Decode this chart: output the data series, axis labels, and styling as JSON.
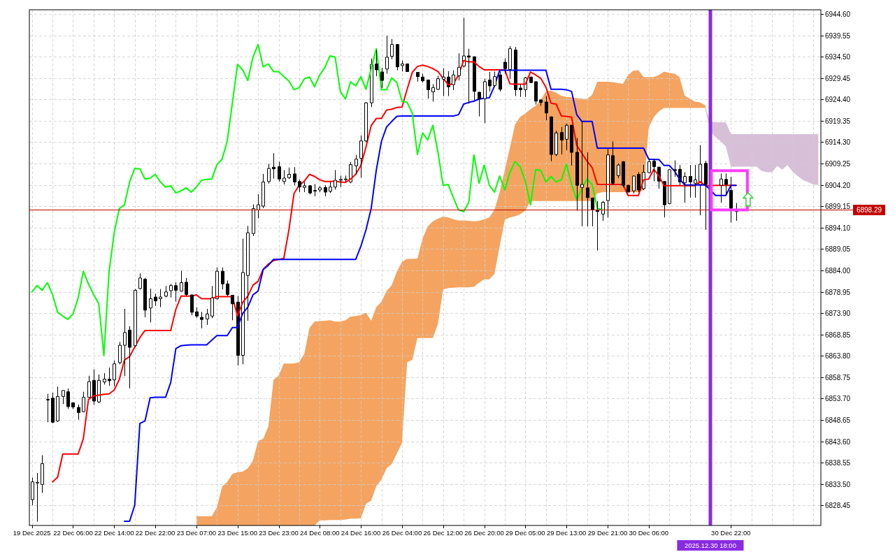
{
  "chart_data": {
    "type": "candlestick",
    "categories": [
      "19 Dec 2025",
      null,
      null,
      null,
      null,
      null,
      null,
      null,
      "22 Dec 06:00",
      null,
      null,
      null,
      null,
      null,
      null,
      null,
      "22 Dec 14:00",
      null,
      null,
      null,
      null,
      null,
      null,
      null,
      "22 Dec 22:00",
      null,
      null,
      null,
      null,
      null,
      null,
      null,
      "23 Dec 07:00",
      null,
      null,
      null,
      null,
      null,
      null,
      null,
      "23 Dec 15:00",
      null,
      null,
      null,
      null,
      null,
      null,
      null,
      "23 Dec 23:00",
      null,
      null,
      null,
      null,
      null,
      null,
      null,
      "24 Dec 08:00",
      null,
      null,
      null,
      null,
      null,
      null,
      null,
      "24 Dec 16:00",
      null,
      null,
      null,
      null,
      null,
      null,
      null,
      "26 Dec 04:00",
      null,
      null,
      null,
      null,
      null,
      null,
      null,
      "26 Dec 12:00",
      null,
      null,
      null,
      null,
      null,
      null,
      null,
      "26 Dec 20:00",
      null,
      null,
      null,
      null,
      null,
      null,
      null,
      "29 Dec 05:00",
      null,
      null,
      null,
      null,
      null,
      null,
      null,
      "29 Dec 13:00",
      null,
      null,
      null,
      null,
      null,
      null,
      null,
      "29 Dec 21:00",
      null,
      null,
      null,
      null,
      null,
      null,
      null,
      "30 Dec 06:00",
      null,
      null,
      null,
      null,
      null,
      null,
      null,
      null,
      null,
      null,
      null,
      "2025.12.30 18:00",
      null,
      null,
      null,
      "30 Dec 22:00",
      null,
      null,
      null,
      null,
      null,
      null,
      null,
      null,
      null,
      null,
      null,
      null,
      null,
      null,
      null,
      null,
      null
    ],
    "ohlc": [
      [
        6829.8,
        6835.0,
        6828.5,
        6834.0
      ],
      [
        6833.9,
        6836.1,
        6824.6,
        6833.9
      ],
      [
        6833.4,
        6840.3,
        6831.4,
        6838.3
      ],
      [
        6853.5,
        6854.8,
        6848.1,
        6853.5
      ],
      [
        6853.8,
        6855.1,
        6847.9,
        6848.1
      ],
      [
        6848.4,
        6856.5,
        6848.2,
        6854.2
      ],
      [
        6854.2,
        6855.7,
        6852.4,
        6855.6
      ],
      [
        6855.3,
        6856.1,
        6851.3,
        6851.8
      ],
      [
        6852.7,
        6852.8,
        6851.2,
        6851.7
      ],
      [
        6851.6,
        6852.3,
        6848.7,
        6850.4
      ],
      [
        6850.6,
        6855.3,
        6850.5,
        6854.0
      ],
      [
        6854.0,
        6859.1,
        6853.9,
        6857.7
      ],
      [
        6858.0,
        6860.6,
        6852.2,
        6853.1
      ],
      [
        6852.9,
        6859.4,
        6852.6,
        6858.0
      ],
      [
        6857.6,
        6859.7,
        6857.0,
        6858.3
      ],
      [
        6858.3,
        6861.0,
        6856.7,
        6857.9
      ],
      [
        6858.1,
        6862.7,
        6856.6,
        6861.9
      ],
      [
        6862.2,
        6867.1,
        6861.8,
        6866.3
      ],
      [
        6866.3,
        6874.9,
        6859.0,
        6869.3
      ],
      [
        6869.9,
        6870.8,
        6856.1,
        6865.8
      ],
      [
        6866.2,
        6879.6,
        6865.9,
        6879.3
      ],
      [
        6879.7,
        6883.3,
        6879.5,
        6882.2
      ],
      [
        6881.9,
        6882.2,
        6872.9,
        6874.6
      ],
      [
        6875.1,
        6879.7,
        6871.7,
        6877.3
      ],
      [
        6877.7,
        6878.5,
        6875.6,
        6876.8
      ],
      [
        6877.3,
        6879.6,
        6875.3,
        6877.7
      ],
      [
        6877.9,
        6880.3,
        6877.6,
        6878.9
      ],
      [
        6879.2,
        6880.8,
        6877.6,
        6880.4
      ],
      [
        6880.4,
        6881.2,
        6876.6,
        6879.3
      ],
      [
        6879.1,
        6883.9,
        6879.0,
        6881.1
      ],
      [
        6881.2,
        6882.2,
        6877.9,
        6878.3
      ],
      [
        6878.2,
        6878.3,
        6873.4,
        6874.1
      ],
      [
        6874.2,
        6875.3,
        6872.8,
        6873.2
      ],
      [
        6872.9,
        6874.2,
        6870.3,
        6872.4
      ],
      [
        6872.5,
        6874.9,
        6871.1,
        6873.7
      ],
      [
        6873.2,
        6880.3,
        6872.7,
        6877.5
      ],
      [
        6877.3,
        6884.7,
        6877.1,
        6883.8
      ],
      [
        6883.8,
        6884.7,
        6879.5,
        6880.8
      ],
      [
        6880.8,
        6881.6,
        6877.9,
        6878.3
      ],
      [
        6878.1,
        6878.2,
        6872.2,
        6876.1
      ],
      [
        6876.5,
        6877.9,
        6861.5,
        6863.9
      ],
      [
        6863.9,
        6891.5,
        6861.8,
        6883.5
      ],
      [
        6882.8,
        6894.5,
        6872.1,
        6892.9
      ],
      [
        6892.7,
        6899.6,
        6892.1,
        6898.6
      ],
      [
        6898.3,
        6902.0,
        6896.3,
        6899.5
      ],
      [
        6899.2,
        6906.8,
        6898.7,
        6904.9
      ],
      [
        6905.0,
        6909.2,
        6904.5,
        6908.1
      ],
      [
        6908.4,
        6911.7,
        6905.7,
        6908.0
      ],
      [
        6908.5,
        6909.7,
        6905.0,
        6905.6
      ],
      [
        6905.0,
        6907.7,
        6904.3,
        6905.8
      ],
      [
        6905.9,
        6908.3,
        6905.6,
        6906.7
      ],
      [
        6906.8,
        6908.4,
        6904.1,
        6904.9
      ],
      [
        6905.0,
        6905.5,
        6902.5,
        6903.7
      ],
      [
        6903.6,
        6904.9,
        6902.5,
        6904.0
      ],
      [
        6904.0,
        6904.1,
        6902.0,
        6902.3
      ],
      [
        6902.9,
        6904.4,
        6901.5,
        6902.8
      ],
      [
        6903.0,
        6903.9,
        6902.5,
        6903.5
      ],
      [
        6903.6,
        6904.1,
        6901.5,
        6902.5
      ],
      [
        6902.7,
        6904.9,
        6902.3,
        6903.7
      ],
      [
        6903.7,
        6907.7,
        6903.1,
        6905.3
      ],
      [
        6905.3,
        6906.4,
        6903.7,
        6905.5
      ],
      [
        6905.5,
        6906.4,
        6905.0,
        6905.6
      ],
      [
        6904.9,
        6909.6,
        6904.6,
        6909.0
      ],
      [
        6908.7,
        6911.3,
        6906.7,
        6910.3
      ],
      [
        6910.5,
        6915.9,
        6905.9,
        6914.6
      ],
      [
        6914.6,
        6923.8,
        6914.3,
        6923.6
      ],
      [
        6923.6,
        6934.1,
        6922.6,
        6932.7
      ],
      [
        6932.8,
        6936.1,
        6929.9,
        6931.4
      ],
      [
        6930.9,
        6931.9,
        6927.1,
        6928.9
      ],
      [
        6931.6,
        6939.5,
        6930.5,
        6934.4
      ],
      [
        6934.6,
        6938.7,
        6933.9,
        6937.4
      ],
      [
        6937.4,
        6937.5,
        6931.3,
        6932.1
      ],
      [
        6932.4,
        6933.6,
        6931.0,
        6932.8
      ],
      [
        6932.8,
        6932.9,
        6930.9,
        6931.0
      ],
      null,
      [
        6930.8,
        6930.9,
        6928.6,
        6929.8
      ],
      [
        6929.7,
        6930.5,
        6928.4,
        6928.8
      ],
      [
        6929.0,
        6929.1,
        6924.6,
        6926.7
      ],
      [
        6926.2,
        6928.0,
        6923.9,
        6927.2
      ],
      [
        6926.8,
        6930.0,
        6926.7,
        6929.3
      ],
      [
        6929.2,
        6931.8,
        6925.2,
        6929.7
      ],
      [
        6929.7,
        6931.1,
        6925.2,
        6927.4
      ],
      [
        6927.9,
        6931.3,
        6926.6,
        6930.2
      ],
      [
        6930.0,
        6935.3,
        6928.9,
        6932.0
      ],
      [
        6932.3,
        6943.7,
        6932.0,
        6934.7
      ],
      [
        6934.7,
        6936.4,
        6923.4,
        6934.4
      ],
      [
        6934.5,
        6934.6,
        6923.9,
        6926.3
      ],
      [
        6926.1,
        6926.2,
        6920.4,
        6924.5
      ],
      [
        6924.6,
        6929.3,
        6918.8,
        6928.6
      ],
      [
        6929.0,
        6930.9,
        6926.3,
        6927.6
      ],
      [
        6927.7,
        6931.0,
        6927.5,
        6929.8
      ],
      [
        6930.2,
        6931.0,
        6926.3,
        6926.8
      ],
      [
        6933.2,
        6934.1,
        6930.5,
        6931.7
      ],
      [
        6931.5,
        6937.0,
        6929.3,
        6936.4
      ],
      [
        6936.1,
        6936.8,
        6925.2,
        6926.7
      ],
      [
        6927.1,
        6928.0,
        6925.0,
        6926.7
      ],
      [
        6926.7,
        6929.7,
        6925.0,
        6929.5
      ],
      [
        6929.7,
        6929.8,
        6928.3,
        6928.4
      ],
      [
        6928.6,
        6928.7,
        6923.2,
        6924.0
      ],
      [
        6924.3,
        6924.4,
        6922.9,
        6923.7
      ],
      [
        6923.8,
        6925.2,
        6919.5,
        6921.2
      ],
      [
        6920.3,
        6920.4,
        6909.8,
        6911.4
      ],
      [
        6911.4,
        6917.0,
        6911.0,
        6916.5
      ],
      [
        6916.6,
        6917.9,
        6911.4,
        6914.8
      ],
      [
        6915.0,
        6918.7,
        6912.4,
        6918.3
      ],
      [
        6918.3,
        6918.4,
        6908.8,
        6911.9
      ],
      [
        6911.9,
        6915.3,
        6898.1,
        6904.1
      ],
      [
        6903.6,
        6919.2,
        6894.4,
        6904.3
      ],
      [
        6903.5,
        6911.9,
        6894.4,
        6901.2
      ],
      [
        6901.1,
        6901.2,
        6894.4,
        6898.3
      ],
      [
        6898.3,
        6900.4,
        6888.7,
        6897.9
      ],
      [
        6897.3,
        6900.4,
        6895.7,
        6900.1
      ],
      [
        6900.5,
        6912.7,
        6896.5,
        6911.3
      ],
      [
        6911.1,
        6914.5,
        6904.1,
        6904.6
      ],
      [
        6906.4,
        6909.3,
        6905.8,
        6908.9
      ],
      [
        6909.7,
        6909.8,
        6903.6,
        6904.1
      ],
      [
        6904.1,
        6904.2,
        6902.5,
        6902.5
      ],
      [
        6902.8,
        6906.4,
        6902.2,
        6906.3
      ],
      [
        6906.7,
        6907.2,
        6902.5,
        6903.0
      ],
      [
        6903.3,
        6909.0,
        6903.0,
        6907.2
      ],
      [
        6907.1,
        6910.4,
        6907.0,
        6909.7
      ],
      [
        6909.8,
        6910.4,
        6905.1,
        6908.5
      ],
      [
        6908.4,
        6908.5,
        6903.3,
        6905.1
      ],
      [
        6905.0,
        6905.1,
        6896.5,
        6899.5
      ],
      [
        6899.8,
        6907.9,
        6899.6,
        6907.8
      ],
      [
        6907.8,
        6910.0,
        6906.1,
        6907.6
      ],
      [
        6907.9,
        6908.9,
        6904.1,
        6904.9
      ],
      [
        6904.7,
        6907.2,
        6900.0,
        6906.2
      ],
      [
        6906.2,
        6908.9,
        6901.2,
        6904.9
      ],
      [
        6904.6,
        6908.9,
        6901.2,
        6905.4
      ],
      [
        6904.3,
        6913.6,
        6897.0,
        6909.1
      ],
      [
        6909.3,
        6909.9,
        6893.6,
        6904.3
      ],
      null,
      null,
      [
        6904.1,
        6906.9,
        6900.0,
        6905.6
      ],
      [
        6905.5,
        6906.9,
        6901.7,
        6904.3
      ],
      [
        6902.9,
        6906.1,
        6895.3,
        6898.7
      ],
      [
        6897.9,
        6899.9,
        6895.7,
        6898.29
      ],
      null,
      null,
      null,
      null,
      null,
      null,
      null,
      null,
      null,
      null,
      null,
      null,
      null,
      null,
      null,
      null
    ],
    "series": [
      {
        "type": "area",
        "color": "#f4a460",
        "values": [
          null,
          null,
          null,
          null,
          null,
          null,
          null,
          null,
          null,
          null,
          null,
          null,
          null,
          null,
          null,
          null,
          null,
          null,
          null,
          null,
          null,
          null,
          null,
          null,
          null,
          null,
          null,
          null,
          null,
          null,
          null,
          null,
          6825.9,
          6825.9,
          6825.9,
          6825.9,
          6828.0,
          6832.9,
          6834.0,
          6835.9,
          6836.3,
          6836.4,
          6837.2,
          6839.0,
          6843.7,
          6844.2,
          6847.1,
          6858.1,
          6859.1,
          6862.0,
          6862.0,
          6862.0,
          6862.3,
          6864.3,
          6870.4,
          6871.9,
          6872.0,
          6872.1,
          6872.2,
          6871.9,
          6871.9,
          6872.2,
          6873.1,
          6873.2,
          6873.4,
          6874.0,
          6872.1,
          6875.3,
          6876.6,
          6879.1,
          6880.5,
          6883.7,
          6886.0,
          6886.7,
          6886.7,
          6886.8,
          6891.5,
          6894.4,
          6895.6,
          6896.2,
          6896.7,
          6896.5,
          6896.1,
          6895.8,
          6895.8,
          6895.7,
          6895.6,
          6895.7,
          6896.1,
          6896.5,
          6898.3,
          6902.5,
          6907.7,
          6913.0,
          6918.5,
          6920.3,
          6921.1,
          6922.1,
          6922.9,
          6924.2,
          6926.3,
          6926.5,
          6926.0,
          6925.3,
          6925.0,
          6924.9,
          6924.7,
          6924.6,
          6924.5,
          6925.5,
          6928.6,
          6928.6,
          6928.6,
          6928.5,
          6928.3,
          6928.1,
          6930.2,
          6931.2,
          6931.3,
          6929.7,
          6929.7,
          6929.7,
          6930.2,
          6931.0,
          6930.7,
          6930.5,
          6929.7,
          6925.3,
          6924.6,
          6923.9,
          6923.7,
          6923.0,
          6916.8,
          6915.5,
          6914.5,
          6913.3,
          6908.5,
          6908.5,
          6908.5,
          6908.5,
          6908.5,
          6908.5,
          6907.5,
          6907.2,
          6907.2,
          6908.7,
          6907.8,
          6908.9,
          6907.3,
          6906.3,
          6905.4,
          6904.9,
          6904.3,
          6904.2
        ]
      },
      {
        "type": "area",
        "color": "#d8bfd8",
        "values": [
          null,
          null,
          null,
          null,
          null,
          null,
          null,
          null,
          null,
          null,
          null,
          null,
          null,
          null,
          null,
          null,
          null,
          null,
          null,
          null,
          null,
          null,
          null,
          null,
          null,
          null,
          null,
          null,
          null,
          null,
          null,
          null,
          null,
          null,
          null,
          null,
          null,
          null,
          null,
          null,
          null,
          null,
          null,
          null,
          null,
          null,
          null,
          null,
          null,
          null,
          null,
          null,
          null,
          null,
          null,
          null,
          6824.9,
          6824.9,
          6825.0,
          6825.0,
          6825.0,
          6825.1,
          6825.3,
          6825.3,
          6825.4,
          6828.8,
          6829.6,
          6833.0,
          6834.5,
          6837.2,
          6838.2,
          6840.7,
          6843.2,
          6862.3,
          6862.8,
          6868.0,
          6868.0,
          6868.0,
          6868.0,
          6871.4,
          6879.5,
          6879.8,
          6879.9,
          6880.0,
          6880.0,
          6880.0,
          6880.1,
          6881.1,
          6881.9,
          6881.9,
          6883.2,
          6889.7,
          6896.0,
          6896.5,
          6896.8,
          6897.3,
          6898.1,
          6900.4,
          6900.4,
          6900.4,
          6900.4,
          6900.4,
          6900.4,
          6900.4,
          6900.4,
          6900.4,
          6900.4,
          6900.4,
          6900.4,
          6900.4,
          6902.2,
          6902.5,
          6902.5,
          6902.5,
          6902.5,
          6902.5,
          6902.5,
          6902.5,
          6902.5,
          6903.0,
          6917.7,
          6920.3,
          6921.6,
          6922.4,
          6922.4,
          6922.4,
          6922.4,
          6922.4,
          6922.4,
          6922.4,
          6922.4,
          6922.4,
          6919.2,
          6919.0,
          6919.0,
          6919.0,
          6916.2,
          6916.2,
          6916.2,
          6916.2,
          6916.2,
          6916.2,
          6916.2,
          6916.2,
          6916.2,
          6916.2,
          6916.2,
          6916.2,
          6916.2,
          6916.2,
          6916.2,
          6916.2,
          6916.2,
          6916.2
        ]
      },
      {
        "type": "line",
        "color": "#ff0000",
        "values": [
          null,
          null,
          null,
          null,
          6834.0,
          6835.1,
          6840.6,
          6840.6,
          6840.6,
          6840.6,
          6844.2,
          6853.5,
          6854.3,
          6854.5,
          6854.7,
          6854.8,
          6855.7,
          6858.2,
          6862.8,
          6863.6,
          6865.9,
          6868.1,
          6869.8,
          6869.8,
          6869.8,
          6869.8,
          6869.8,
          6869.8,
          6874.8,
          6877.9,
          6877.9,
          6877.9,
          6878.2,
          6877.3,
          6877.3,
          6877.3,
          6877.8,
          6877.8,
          6877.8,
          6877.8,
          6873.2,
          6876.4,
          6877.9,
          6880.5,
          6881.4,
          6884.3,
          6885.5,
          6886.3,
          6886.6,
          6886.8,
          6893.6,
          6902.2,
          6904.1,
          6905.1,
          6906.7,
          6906.2,
          6905.4,
          6905.0,
          6905.0,
          6905.1,
          6904.9,
          6904.8,
          6905.6,
          6906.7,
          6908.8,
          6913.2,
          6918.2,
          6919.9,
          6919.9,
          6921.9,
          6922.1,
          6922.5,
          6922.6,
          6926.8,
          6930.8,
          6932.2,
          6932.5,
          6932.2,
          6931.7,
          6931.0,
          6929.4,
          6927.9,
          6928.1,
          6930.2,
          6933.6,
          6933.3,
          6933.3,
          6932.2,
          6931.4,
          6931.4,
          6931.4,
          6931.4,
          6931.4,
          6928.1,
          6928.0,
          6928.0,
          6928.0,
          6930.9,
          6930.2,
          6929.4,
          6927.3,
          6923.5,
          6923.3,
          6920.5,
          6920.4,
          6920.2,
          6913.5,
          6911.7,
          6909.8,
          6908.3,
          6904.3,
          6904.3,
          6904.3,
          6904.3,
          6904.3,
          6904.3,
          6901.7,
          6901.7,
          6901.7,
          6905.4,
          6905.6,
          6907.9,
          6906.3,
          6904.0,
          6904.0,
          6904.0,
          6904.0,
          6904.0,
          6904.0,
          6904.0,
          6905.0,
          6904.0,
          6904.0,
          6904.1,
          6904.1,
          6904.1,
          6904.1,
          6904.1,
          null,
          null,
          null,
          null,
          null,
          null,
          null,
          null,
          null,
          null,
          null,
          null,
          null,
          null,
          null,
          null
        ]
      },
      {
        "type": "line",
        "color": "#0000ff",
        "values": [
          null,
          null,
          null,
          null,
          null,
          null,
          null,
          null,
          null,
          null,
          null,
          null,
          null,
          null,
          null,
          null,
          null,
          null,
          6824.7,
          6824.7,
          6828.5,
          6847.8,
          6848.4,
          6853.9,
          6854.0,
          6854.0,
          6854.0,
          6857.5,
          6865.5,
          6866.2,
          6866.3,
          6866.4,
          6866.4,
          6866.4,
          6866.4,
          6867.5,
          6868.6,
          6868.6,
          6868.6,
          6870.5,
          6870.5,
          6873.8,
          6875.3,
          6878.2,
          6879.1,
          6884.2,
          6885.2,
          6886.6,
          6886.6,
          6886.6,
          6886.6,
          6886.6,
          6886.6,
          6886.6,
          6886.6,
          6886.6,
          6886.6,
          6886.6,
          6886.6,
          6886.6,
          6886.6,
          6886.6,
          6886.6,
          6886.6,
          6889.7,
          6893.6,
          6898.6,
          6907.7,
          6914.5,
          6917.9,
          6919.2,
          6920.4,
          6920.5,
          6920.5,
          6920.5,
          6920.5,
          6920.5,
          6920.5,
          6920.5,
          6920.5,
          6920.5,
          6920.5,
          6920.5,
          6920.8,
          6923.3,
          6923.7,
          6924.0,
          6924.5,
          6924.7,
          6924.8,
          6927.6,
          6931.3,
          6931.3,
          6931.3,
          6931.3,
          6931.3,
          6931.3,
          6931.3,
          6931.3,
          6931.3,
          6931.3,
          6926.8,
          6926.8,
          6926.8,
          6926.7,
          6926.3,
          6920.8,
          6919.2,
          6919.2,
          6919.2,
          6912.9,
          6912.9,
          6912.9,
          6912.9,
          6912.9,
          6912.9,
          6912.9,
          6912.9,
          6912.9,
          6912.9,
          6910.3,
          6910.2,
          6910.2,
          6908.8,
          6908.8,
          6907.5,
          6905.6,
          6904.2,
          6904.2,
          6904.2,
          6904.2,
          6904.2,
          6903.0,
          6901.7,
          6901.7,
          6901.7,
          6904.1,
          6904.1,
          null,
          null,
          null,
          null,
          null,
          null,
          null,
          null,
          null,
          null,
          null,
          null,
          null,
          null,
          null,
          null
        ]
      },
      {
        "type": "line",
        "color": "#00ff00",
        "values": [
          6878.9,
          6880.4,
          6879.3,
          6881.1,
          6878.3,
          6874.1,
          6873.2,
          6872.4,
          6873.7,
          6877.5,
          6883.8,
          6880.8,
          6878.3,
          6876.1,
          6863.9,
          6883.5,
          6892.9,
          6898.6,
          6899.5,
          6904.9,
          6908.1,
          6908.0,
          6905.6,
          6905.8,
          6906.7,
          6904.9,
          6903.7,
          6904.0,
          6902.3,
          6902.8,
          6903.5,
          6902.5,
          6903.7,
          6905.3,
          6905.5,
          6905.6,
          6909.0,
          6910.3,
          6914.6,
          6923.6,
          6932.7,
          6931.4,
          6928.9,
          6934.4,
          6937.4,
          6932.1,
          6932.8,
          6931.0,
          6931.0,
          6929.8,
          6928.8,
          6926.7,
          6927.2,
          6929.3,
          6929.7,
          6927.4,
          6930.2,
          6932.0,
          6934.7,
          6934.4,
          6926.3,
          6924.5,
          6928.6,
          6927.6,
          6929.8,
          6926.8,
          6931.7,
          6936.4,
          6926.7,
          6926.7,
          6929.5,
          6928.4,
          6924.0,
          6923.7,
          6921.2,
          6911.4,
          6916.5,
          6914.8,
          6918.3,
          6911.9,
          6904.1,
          6904.3,
          6901.2,
          6898.3,
          6897.9,
          6900.1,
          6911.3,
          6904.6,
          6908.9,
          6904.1,
          6902.5,
          6906.3,
          6903.0,
          6907.2,
          6909.7,
          6908.5,
          6905.1,
          6899.5,
          6907.8,
          6907.6,
          6904.9,
          6906.2,
          6904.9,
          6905.4,
          6909.1,
          6904.3,
          6900.7,
          6903.3,
          6905.6,
          6904.3,
          6898.7,
          6898.3,
          null,
          null,
          null,
          null,
          null,
          null,
          null,
          null,
          null,
          null,
          null,
          null,
          null,
          null,
          null,
          null,
          null,
          null,
          null,
          null,
          null,
          null,
          null,
          null,
          null,
          null,
          null,
          null,
          null,
          null,
          null,
          null,
          null,
          null,
          null,
          null,
          null,
          null,
          null,
          null,
          null,
          null
        ]
      }
    ],
    "ylim": [
      6823.7,
      6945.6
    ],
    "yticks": [
      6828.45,
      {
        "value": 6833.5,
        "label": "6833.50"
      },
      6838.55,
      {
        "value": 6843.6,
        "label": "6843.60"
      },
      6848.65,
      {
        "value": 6853.7,
        "label": "6853.70"
      },
      6858.75,
      {
        "value": 6863.8,
        "label": "6863.80"
      },
      6868.85,
      {
        "value": 6873.9,
        "label": "6873.90"
      },
      6878.95,
      {
        "value": 6884,
        "label": "6884.00"
      },
      6889.05,
      {
        "value": 6894.1,
        "label": "6894.10"
      },
      6899.15,
      {
        "value": 6904.2,
        "label": "6904.20"
      },
      6909.25,
      {
        "value": 6914.3,
        "label": "6914.30"
      },
      6919.35,
      {
        "value": 6924.4,
        "label": "6924.40"
      },
      6929.45,
      {
        "value": 6934.5,
        "label": "6934.50"
      },
      6939.55,
      {
        "value": 6944.6,
        "label": "6944.60"
      }
    ],
    "grid": true,
    "ref_lines": [
      {
        "axis": "y",
        "value": 6898.29,
        "label": "6898.29",
        "color": "#c00000"
      },
      {
        "axis": "x",
        "value": "2025.12.30 18:00",
        "color": "#8a2be2"
      }
    ]
  }
}
